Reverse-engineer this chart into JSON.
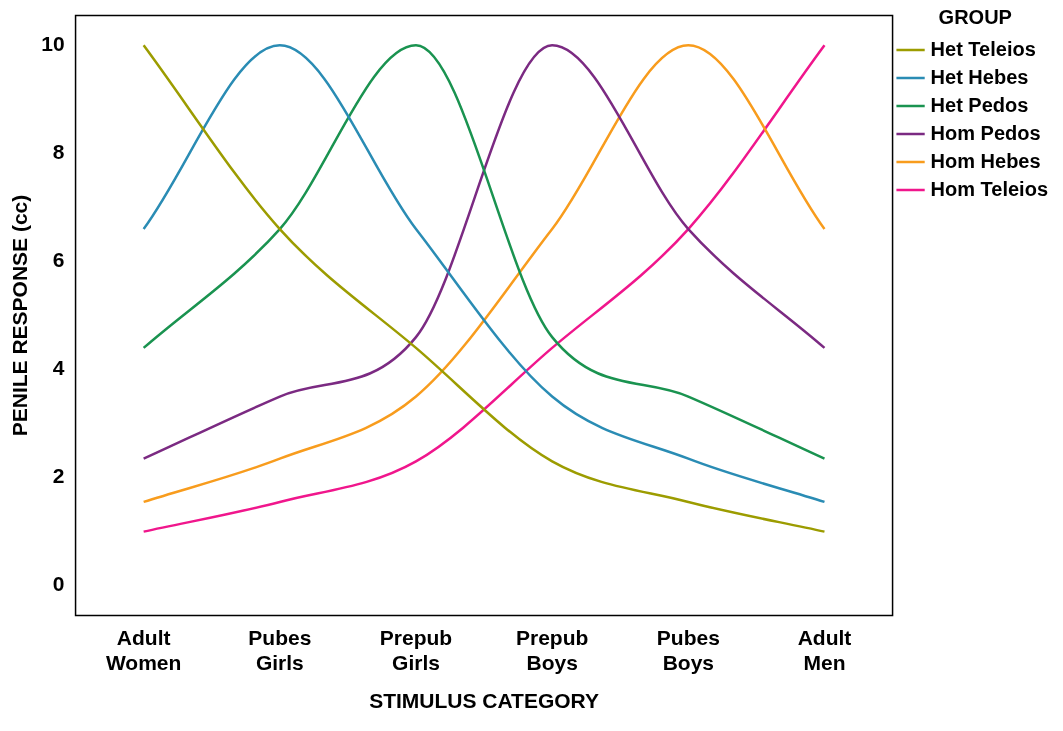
{
  "chart_data": {
    "type": "line",
    "xlabel": "STIMULUS CATEGORY",
    "ylabel": "PENILE RESPONSE (cc)",
    "legend_title": "GROUP",
    "categories": [
      "Adult Women",
      "Pubes Girls",
      "Prepub Girls",
      "Prepub Boys",
      "Pubes Boys",
      "Adult Men"
    ],
    "series": [
      {
        "name": "Het Teleios",
        "color": "#9c9c00",
        "values": [
          10,
          6.6,
          4.4,
          2.3,
          1.55,
          1.0
        ]
      },
      {
        "name": "Het Hebes",
        "color": "#2a8cb4",
        "values": [
          6.6,
          10,
          6.6,
          3.5,
          2.35,
          1.55
        ]
      },
      {
        "name": "Het Pedos",
        "color": "#1a9350",
        "values": [
          4.4,
          6.6,
          10,
          4.6,
          3.5,
          2.35
        ]
      },
      {
        "name": "Hom Pedos",
        "color": "#7b2a82",
        "values": [
          2.35,
          3.5,
          4.6,
          10,
          6.6,
          4.4
        ]
      },
      {
        "name": "Hom Hebes",
        "color": "#f89c1d",
        "values": [
          1.55,
          2.35,
          3.5,
          6.6,
          10,
          6.6
        ]
      },
      {
        "name": "Hom Teleios",
        "color": "#f0168c",
        "values": [
          1.0,
          1.55,
          2.3,
          4.4,
          6.6,
          10
        ]
      }
    ],
    "ylim": [
      -0.55,
      10.55
    ],
    "yticks": [
      0,
      2,
      4,
      6,
      8,
      10
    ],
    "grid": false,
    "legend": "top right",
    "marker": "none"
  }
}
